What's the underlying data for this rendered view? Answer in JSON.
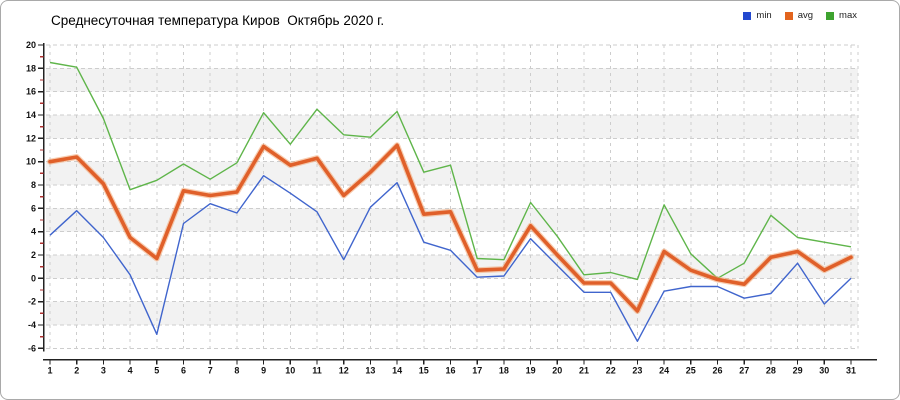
{
  "header": {
    "title": "Среднесуточная температура Киров  Октябрь 2020 г."
  },
  "legend": [
    {
      "label": "min",
      "color": "#2348cf"
    },
    {
      "label": "avg",
      "color": "#e2641e"
    },
    {
      "label": "max",
      "color": "#3da32f"
    }
  ],
  "chart_data": {
    "type": "line",
    "title": "Среднесуточная температура Киров  Октябрь 2020 г.",
    "xlabel": "",
    "ylabel": "",
    "x": [
      1,
      2,
      3,
      4,
      5,
      6,
      7,
      8,
      9,
      10,
      11,
      12,
      13,
      14,
      15,
      16,
      17,
      18,
      19,
      20,
      21,
      22,
      23,
      24,
      25,
      26,
      27,
      28,
      29,
      30,
      31
    ],
    "series": [
      {
        "name": "min",
        "color": "#4065cd",
        "values": [
          3.7,
          5.8,
          3.5,
          0.3,
          -4.8,
          4.7,
          6.4,
          5.6,
          8.8,
          7.3,
          5.7,
          1.6,
          6.1,
          8.2,
          3.1,
          2.4,
          0.1,
          0.2,
          3.4,
          1.1,
          -1.2,
          -1.2,
          -5.4,
          -1.1,
          -0.7,
          -0.7,
          -1.7,
          -1.3,
          1.3,
          -2.2,
          0.0
        ]
      },
      {
        "name": "avg",
        "color": "#e0602a",
        "halo_color": "#f2a672",
        "values": [
          10.0,
          10.4,
          8.1,
          3.5,
          1.7,
          7.5,
          7.1,
          7.4,
          11.3,
          9.7,
          10.3,
          7.1,
          9.1,
          11.4,
          5.5,
          5.7,
          0.7,
          0.8,
          4.5,
          2.0,
          -0.4,
          -0.4,
          -2.8,
          2.3,
          0.7,
          -0.1,
          -0.5,
          1.8,
          2.3,
          0.7,
          1.8
        ]
      },
      {
        "name": "max",
        "color": "#5fb54a",
        "values": [
          18.5,
          18.1,
          13.7,
          7.6,
          8.4,
          9.8,
          8.5,
          9.9,
          14.2,
          11.5,
          14.5,
          12.3,
          12.1,
          14.3,
          9.1,
          9.7,
          1.7,
          1.6,
          6.5,
          3.6,
          0.3,
          0.5,
          -0.1,
          6.3,
          2.1,
          0.0,
          1.3,
          5.4,
          3.5,
          3.1,
          2.7
        ]
      }
    ],
    "ylim": [
      -6,
      20
    ],
    "ytick_step": 2,
    "minor_ticks": "odd values, red",
    "minor_tick_color": "#b03030",
    "grid": "dashed",
    "band_shading_color": "#f2f2f2",
    "legend_position": "top-right"
  }
}
